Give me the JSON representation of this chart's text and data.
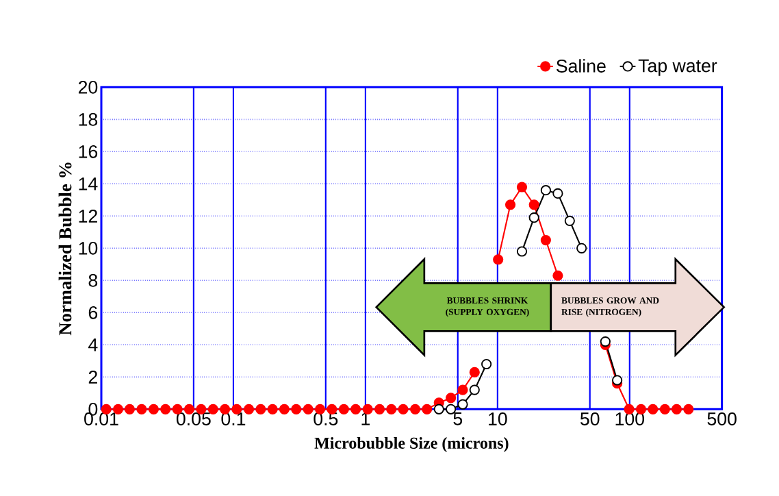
{
  "chart_data": {
    "type": "line",
    "xlabel": "Microbubble Size (microns)",
    "ylabel": "Normalized Bubble %",
    "x": [
      0.0109,
      0.0134,
      0.0164,
      0.0202,
      0.0249,
      0.0306,
      0.0377,
      0.0463,
      0.057,
      0.0702,
      0.0863,
      0.106,
      0.131,
      0.161,
      0.198,
      0.243,
      0.299,
      0.368,
      0.453,
      0.557,
      0.686,
      0.843,
      1.04,
      1.28,
      1.57,
      1.93,
      2.38,
      2.92,
      3.6,
      4.43,
      5.45,
      6.7,
      8.24,
      10.1,
      12.5,
      15.3,
      18.9,
      23.2,
      28.6,
      35.2,
      43.3,
      53.2,
      65.5,
      80.5,
      99.1,
      122,
      150,
      185,
      227,
      279
    ],
    "series": [
      {
        "name": "Tap water",
        "color": "#000000",
        "values": [
          null,
          null,
          null,
          null,
          null,
          null,
          null,
          null,
          null,
          null,
          null,
          null,
          null,
          null,
          null,
          null,
          null,
          null,
          null,
          null,
          null,
          null,
          null,
          null,
          null,
          null,
          null,
          null,
          0,
          0,
          0.3,
          1.2,
          2.8,
          null,
          null,
          9.8,
          11.9,
          13.6,
          13.4,
          11.7,
          10.0,
          null,
          4.2,
          1.8,
          null,
          null,
          null,
          null,
          null,
          null
        ]
      },
      {
        "name": "Saline",
        "color": "#ff0000",
        "values": [
          0,
          0,
          0,
          0,
          0,
          0,
          0,
          0,
          0,
          0,
          0,
          0,
          0,
          0,
          0,
          0,
          0,
          0,
          0,
          0,
          0,
          0,
          0,
          0,
          0,
          0,
          0,
          0,
          0.4,
          0.7,
          1.2,
          2.3,
          null,
          9.3,
          12.7,
          13.8,
          12.7,
          10.5,
          8.3,
          null,
          null,
          null,
          4.0,
          1.6,
          0,
          0,
          0,
          0,
          0,
          0
        ]
      }
    ],
    "xlim": [
      0.01,
      500
    ],
    "xticks": [
      0.01,
      0.05,
      0.1,
      0.5,
      1,
      5,
      10,
      50,
      100,
      500
    ],
    "ylim": [
      0,
      20
    ],
    "yticks": [
      0,
      2,
      4,
      6,
      8,
      10,
      12,
      14,
      16,
      18,
      20
    ],
    "log": "x",
    "grid": true,
    "legend": "top right",
    "marker": "circle",
    "line_style": "solid",
    "annotations": [
      "BUBBLES SHRINK (SUPPLY OXYGEN)",
      "BUBBLES GROW AND RISE (NITROGEN)"
    ]
  }
}
